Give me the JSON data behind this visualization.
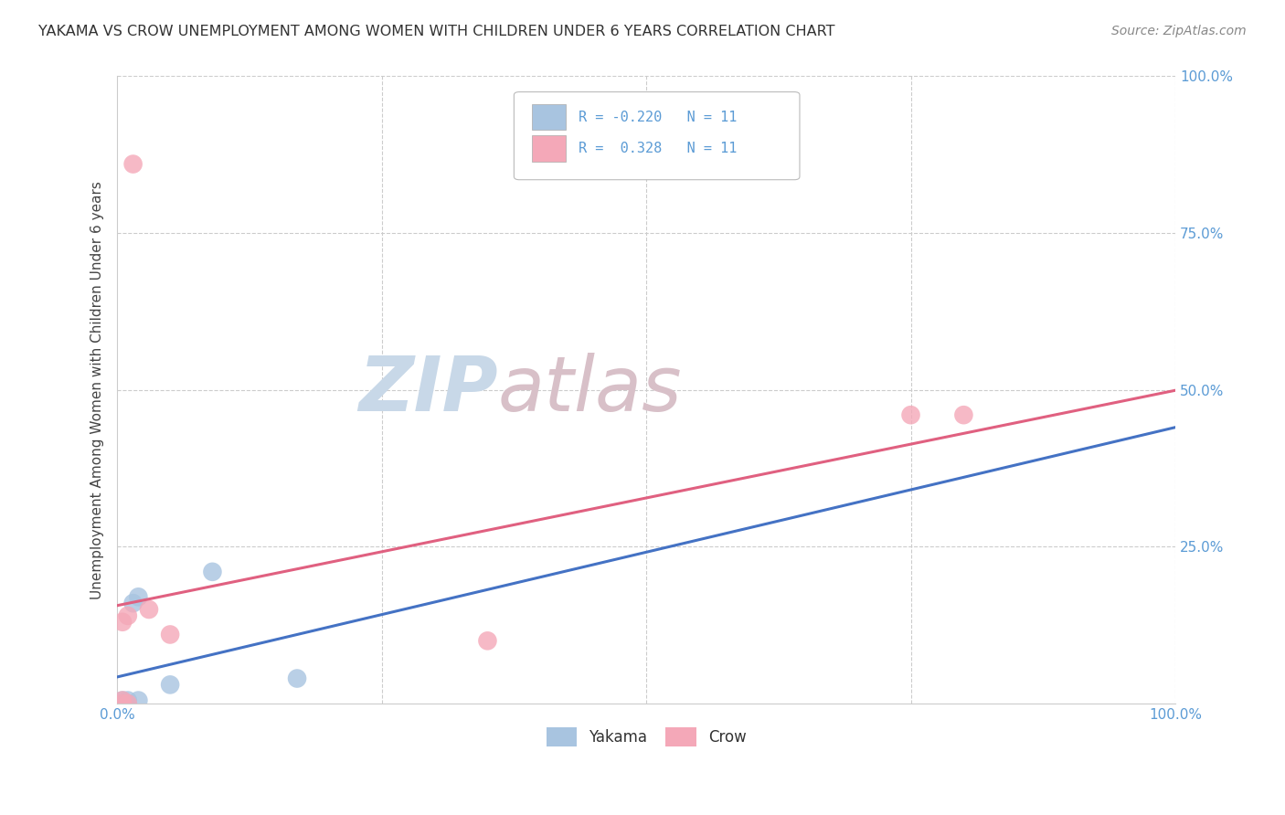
{
  "title": "YAKAMA VS CROW UNEMPLOYMENT AMONG WOMEN WITH CHILDREN UNDER 6 YEARS CORRELATION CHART",
  "source": "Source: ZipAtlas.com",
  "ylabel": "Unemployment Among Women with Children Under 6 years",
  "xlim": [
    0,
    1
  ],
  "ylim": [
    0,
    1
  ],
  "xtick_positions": [
    0,
    0.25,
    0.5,
    0.75,
    1.0
  ],
  "xtick_labels": [
    "0.0%",
    "",
    "",
    "",
    "100.0%"
  ],
  "ytick_positions": [
    0.0,
    0.25,
    0.5,
    0.75,
    1.0
  ],
  "ytick_labels": [
    "",
    "25.0%",
    "50.0%",
    "75.0%",
    "100.0%"
  ],
  "yakama_x": [
    0.005,
    0.005,
    0.005,
    0.01,
    0.01,
    0.015,
    0.02,
    0.02,
    0.05,
    0.09,
    0.17
  ],
  "yakama_y": [
    0.0,
    0.0,
    0.005,
    0.0,
    0.005,
    0.16,
    0.17,
    0.005,
    0.03,
    0.21,
    0.04
  ],
  "crow_x": [
    0.005,
    0.005,
    0.005,
    0.01,
    0.01,
    0.03,
    0.05,
    0.35,
    0.75,
    0.8,
    0.015
  ],
  "crow_y": [
    0.0,
    0.005,
    0.13,
    0.0,
    0.14,
    0.15,
    0.11,
    0.1,
    0.46,
    0.46,
    0.86
  ],
  "yakama_R": -0.22,
  "crow_R": 0.328,
  "yakama_N": 11,
  "crow_N": 11,
  "yakama_color": "#a8c4e0",
  "crow_color": "#f4a8b8",
  "yakama_line_color": "#4472c4",
  "crow_line_color": "#e06080",
  "watermark_zip_color": "#c8d8e8",
  "watermark_atlas_color": "#d0c0c8",
  "grid_color": "#cccccc",
  "title_color": "#333333",
  "axis_tick_color": "#5b9bd5",
  "legend_text_color": "#5b9bd5"
}
